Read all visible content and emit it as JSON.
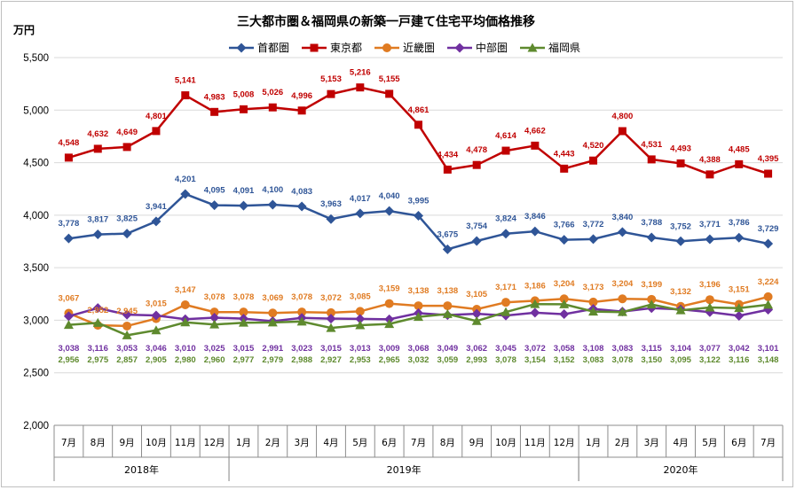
{
  "chart_data": {
    "type": "line",
    "title": "三大都市圏＆福岡県の新築一戸建て住宅平均価格推移",
    "ylabel": "万円",
    "xlabel": "",
    "ylim": [
      2000,
      5500
    ],
    "yticks": [
      "2,000",
      "2,500",
      "3,000",
      "3,500",
      "4,000",
      "4,500",
      "5,000",
      "5,500"
    ],
    "ytick_values": [
      2000,
      2500,
      3000,
      3500,
      4000,
      4500,
      5000,
      5500
    ],
    "grid": "horizontal",
    "legend_position": "top",
    "categories": [
      "7月",
      "8月",
      "9月",
      "10月",
      "11月",
      "12月",
      "1月",
      "2月",
      "3月",
      "4月",
      "5月",
      "6月",
      "7月",
      "8月",
      "9月",
      "10月",
      "11月",
      "12月",
      "1月",
      "2月",
      "3月",
      "4月",
      "5月",
      "6月",
      "7月"
    ],
    "year_groups": [
      {
        "label": "2018年",
        "count": 6
      },
      {
        "label": "2019年",
        "count": 12
      },
      {
        "label": "2020年",
        "count": 7
      }
    ],
    "series": [
      {
        "name": "首都圏",
        "color": "#2f5597",
        "marker": "diamond",
        "values": [
          3778,
          3817,
          3825,
          3941,
          4201,
          4095,
          4091,
          4100,
          4083,
          3963,
          4017,
          4040,
          3995,
          3675,
          3754,
          3824,
          3846,
          3766,
          3772,
          3840,
          3788,
          3752,
          3771,
          3786,
          3729
        ],
        "labels": [
          "3,778",
          "3,817",
          "3,825",
          "3,941",
          "4,201",
          "4,095",
          "4,091",
          "4,100",
          "4,083",
          "3,963",
          "4,017",
          "4,040",
          "3,995",
          "3,675",
          "3,754",
          "3,824",
          "3,846",
          "3,766",
          "3,772",
          "3,840",
          "3,788",
          "3,752",
          "3,771",
          "3,786",
          "3,729"
        ]
      },
      {
        "name": "東京都",
        "color": "#c00000",
        "marker": "square",
        "values": [
          4548,
          4632,
          4649,
          4801,
          5141,
          4983,
          5008,
          5026,
          4996,
          5153,
          5216,
          5155,
          4861,
          4434,
          4478,
          4614,
          4662,
          4443,
          4520,
          4800,
          4531,
          4493,
          4388,
          4485,
          4395
        ],
        "labels": [
          "4,548",
          "4,632",
          "4,649",
          "4,801",
          "5,141",
          "4,983",
          "5,008",
          "5,026",
          "4,996",
          "5,153",
          "5,216",
          "5,155",
          "4,861",
          "4,434",
          "4,478",
          "4,614",
          "4,662",
          "4,443",
          "4,520",
          "4,800",
          "4,531",
          "4,493",
          "4,388",
          "4,485",
          "4,395"
        ]
      },
      {
        "name": "近畿圏",
        "color": "#e07b22",
        "marker": "circle",
        "values": [
          3067,
          2952,
          2945,
          3015,
          3147,
          3078,
          3078,
          3069,
          3078,
          3072,
          3085,
          3159,
          3138,
          3138,
          3105,
          3171,
          3186,
          3204,
          3173,
          3204,
          3199,
          3132,
          3196,
          3151,
          3224
        ],
        "labels": [
          "3,067",
          "2,952",
          "2,945",
          "3,015",
          "3,147",
          "3,078",
          "3,078",
          "3,069",
          "3,078",
          "3,072",
          "3,085",
          "3,159",
          "3,138",
          "3,138",
          "3,105",
          "3,171",
          "3,186",
          "3,204",
          "3,173",
          "3,204",
          "3,199",
          "3,132",
          "3,196",
          "3,151",
          "3,224"
        ]
      },
      {
        "name": "中部圏",
        "color": "#7030a0",
        "marker": "diamond",
        "values": [
          3038,
          3116,
          3053,
          3046,
          3010,
          3025,
          3015,
          2991,
          3023,
          3015,
          3013,
          3009,
          3068,
          3049,
          3062,
          3045,
          3072,
          3058,
          3108,
          3083,
          3115,
          3104,
          3077,
          3042,
          3101
        ],
        "labels": [
          "3,038",
          "3,116",
          "3,053",
          "3,046",
          "3,010",
          "3,025",
          "3,015",
          "2,991",
          "3,023",
          "3,015",
          "3,013",
          "3,009",
          "3,068",
          "3,049",
          "3,062",
          "3,045",
          "3,072",
          "3,058",
          "3,108",
          "3,083",
          "3,115",
          "3,104",
          "3,077",
          "3,042",
          "3,101"
        ]
      },
      {
        "name": "福岡県",
        "color": "#5e8a2e",
        "marker": "triangle",
        "values": [
          2956,
          2975,
          2857,
          2905,
          2980,
          2960,
          2977,
          2979,
          2988,
          2927,
          2953,
          2965,
          3032,
          3059,
          2993,
          3078,
          3154,
          3152,
          3083,
          3078,
          3150,
          3095,
          3122,
          3116,
          3148
        ],
        "labels": [
          "2,956",
          "2,975",
          "2,857",
          "2,905",
          "2,980",
          "2,960",
          "2,977",
          "2,979",
          "2,988",
          "2,927",
          "2,953",
          "2,965",
          "3,032",
          "3,059",
          "2,993",
          "3,078",
          "3,154",
          "3,152",
          "3,083",
          "3,078",
          "3,150",
          "3,095",
          "3,122",
          "3,116",
          "3,148"
        ]
      }
    ]
  }
}
